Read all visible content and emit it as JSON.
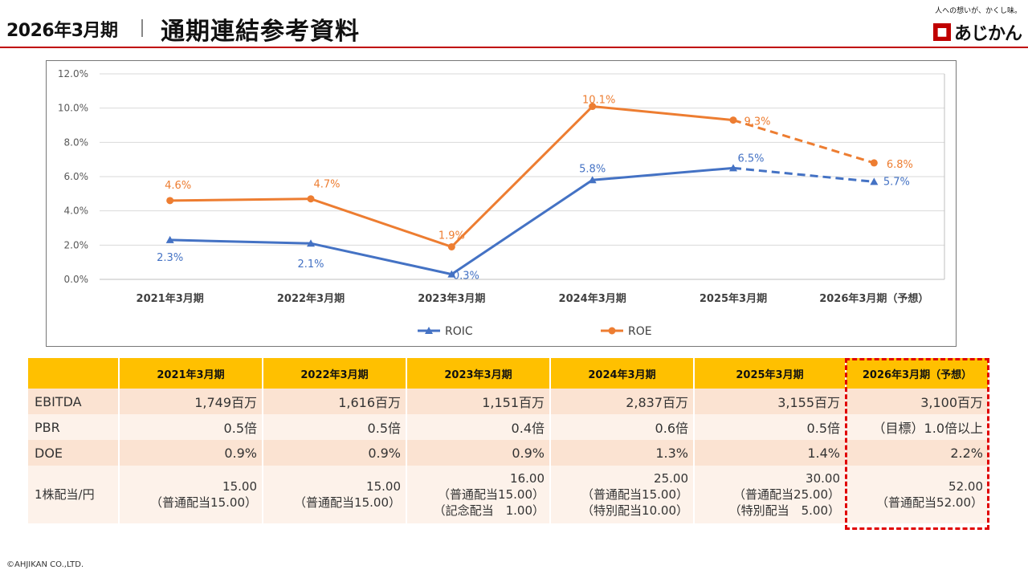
{
  "header": {
    "period": "2026年3月期",
    "title": "通期連結参考資料",
    "logo_tagline": "人への想いが、かくし味。",
    "logo_text": "あじかん"
  },
  "colors": {
    "roic": "#4472c4",
    "roe": "#ed7d31",
    "header_fill": "#ffc000",
    "accent": "#c00000"
  },
  "chart_data": {
    "type": "line",
    "categories": [
      "2021年3月期",
      "2022年3月期",
      "2023年3月期",
      "2024年3月期",
      "2025年3月期",
      "2026年3月期（予想）"
    ],
    "series": [
      {
        "name": "ROIC",
        "values": [
          2.3,
          2.1,
          0.3,
          5.8,
          6.5,
          5.7
        ],
        "labels": [
          "2.3%",
          "2.1%",
          "0.3%",
          "5.8%",
          "6.5%",
          "5.7%"
        ],
        "marker": "triangle",
        "dashed_last_segment": true
      },
      {
        "name": "ROE",
        "values": [
          4.6,
          4.7,
          1.9,
          10.1,
          9.3,
          6.8
        ],
        "labels": [
          "4.6%",
          "4.7%",
          "1.9%",
          "10.1%",
          "9.3%",
          "6.8%"
        ],
        "marker": "circle",
        "dashed_last_segment": true
      }
    ],
    "yticks": [
      "0.0%",
      "2.0%",
      "4.0%",
      "6.0%",
      "8.0%",
      "10.0%",
      "12.0%"
    ],
    "ylim": [
      0,
      12
    ],
    "grid": true,
    "legend": "bottom"
  },
  "table": {
    "columns": [
      "2021年3月期",
      "2022年3月期",
      "2023年3月期",
      "2024年3月期",
      "2025年3月期",
      "2026年3月期（予想）"
    ],
    "rows": [
      {
        "label": "EBITDA",
        "cells": [
          [
            "1,749百万"
          ],
          [
            "1,616百万"
          ],
          [
            "1,151百万"
          ],
          [
            "2,837百万"
          ],
          [
            "3,155百万"
          ],
          [
            "3,100百万"
          ]
        ]
      },
      {
        "label": "PBR",
        "cells": [
          [
            "0.5倍"
          ],
          [
            "0.5倍"
          ],
          [
            "0.4倍"
          ],
          [
            "0.6倍"
          ],
          [
            "0.5倍"
          ],
          [
            "（目標）1.0倍以上"
          ]
        ]
      },
      {
        "label": "DOE",
        "cells": [
          [
            "0.9%"
          ],
          [
            "0.9%"
          ],
          [
            "0.9%"
          ],
          [
            "1.3%"
          ],
          [
            "1.4%"
          ],
          [
            "2.2%"
          ]
        ]
      },
      {
        "label": "1株配当/円",
        "cells": [
          [
            "15.00",
            "（普通配当15.00）"
          ],
          [
            "15.00",
            "（普通配当15.00）"
          ],
          [
            "16.00",
            "（普通配当15.00）",
            "（記念配当　1.00）"
          ],
          [
            "25.00",
            "（普通配当15.00）",
            "（特別配当10.00）"
          ],
          [
            "30.00",
            "（普通配当25.00）",
            "（特別配当　5.00）"
          ],
          [
            "52.00",
            "（普通配当52.00）"
          ]
        ]
      }
    ]
  },
  "footer": {
    "copyright": "©AHJIKAN CO.,LTD."
  }
}
